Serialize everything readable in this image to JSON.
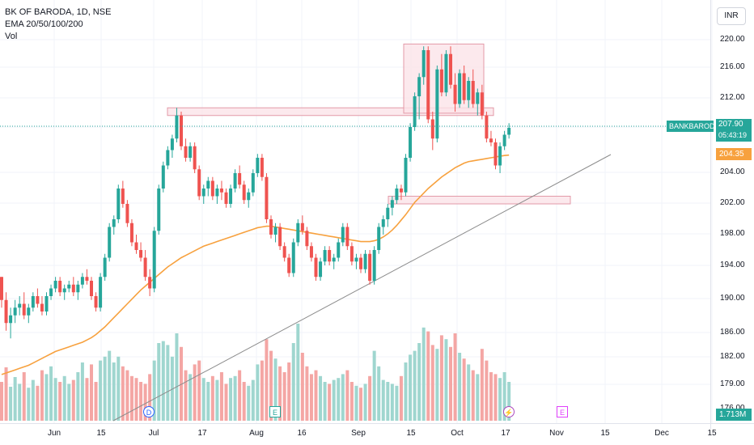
{
  "header": {
    "title": "BK OF BARODA, 1D, NSE",
    "indicator": "EMA 20/50/100/200",
    "volume_label": "Vol",
    "currency": "INR"
  },
  "price_axis": {
    "labels": [
      "220.00",
      "216.00",
      "212.00",
      "208.00",
      "204.00",
      "202.00",
      "198.00",
      "194.00",
      "190.00",
      "186.00",
      "182.00",
      "179.00",
      "176.00"
    ]
  },
  "time_axis": {
    "labels": [
      "Jun",
      "15",
      "Jul",
      "17",
      "Aug",
      "16",
      "Sep",
      "15",
      "Oct",
      "17",
      "Nov",
      "15",
      "Dec",
      "15"
    ]
  },
  "tags": {
    "symbol": "BANKBARODA",
    "last_price": "207.90",
    "countdown": "05:43:19",
    "ema_value": "204.35",
    "volume_value": "1.713M"
  },
  "markers": {
    "dividend": "D",
    "earnings_1": "E",
    "earnings_2": "E",
    "event": "⚡"
  },
  "colors": {
    "up": "#26a69a",
    "down": "#ef5350",
    "ema": "#f7a13e",
    "zone_fill": "#fbe4e8",
    "zone_stroke": "#e39aa8"
  },
  "chart_data": {
    "type": "candlestick",
    "series": [
      {
        "name": "BK OF BARODA, 1D, NSE",
        "ohlc": [
          [
            188.5,
            188.5,
            184.5,
            185.5
          ],
          [
            185.5,
            186.5,
            181.5,
            182.5
          ],
          [
            182.5,
            184.5,
            180.5,
            183.5
          ],
          [
            183.5,
            185.5,
            182.5,
            184.5
          ],
          [
            184.5,
            186.0,
            183.5,
            185.0
          ],
          [
            185.0,
            186.5,
            183.0,
            183.5
          ],
          [
            183.5,
            185.0,
            182.5,
            184.5
          ],
          [
            184.5,
            186.5,
            184.0,
            186.0
          ],
          [
            186.0,
            187.0,
            184.5,
            185.0
          ],
          [
            185.0,
            186.0,
            183.5,
            184.0
          ],
          [
            184.0,
            186.5,
            183.5,
            186.0
          ],
          [
            186.0,
            187.5,
            185.5,
            187.0
          ],
          [
            187.0,
            188.5,
            186.5,
            188.0
          ],
          [
            188.0,
            188.5,
            186.0,
            186.5
          ],
          [
            186.5,
            187.5,
            185.5,
            187.0
          ],
          [
            187.0,
            188.0,
            186.5,
            187.5
          ],
          [
            187.5,
            188.5,
            186.0,
            186.5
          ],
          [
            186.5,
            188.0,
            185.5,
            187.5
          ],
          [
            187.5,
            189.0,
            187.0,
            188.5
          ],
          [
            188.5,
            189.5,
            187.5,
            188.0
          ],
          [
            188.0,
            188.5,
            185.5,
            186.0
          ],
          [
            186.0,
            186.5,
            184.0,
            184.5
          ],
          [
            184.5,
            189.0,
            184.0,
            188.5
          ],
          [
            188.5,
            191.5,
            188.0,
            191.0
          ],
          [
            191.0,
            195.5,
            190.5,
            195.0
          ],
          [
            195.0,
            196.5,
            194.0,
            196.0
          ],
          [
            196.0,
            200.5,
            195.5,
            200.0
          ],
          [
            200.0,
            201.0,
            197.5,
            198.0
          ],
          [
            198.0,
            198.5,
            195.0,
            195.5
          ],
          [
            195.5,
            196.0,
            192.5,
            193.0
          ],
          [
            193.0,
            194.0,
            191.5,
            192.0
          ],
          [
            192.0,
            193.0,
            190.5,
            191.0
          ],
          [
            191.0,
            192.0,
            188.0,
            188.5
          ],
          [
            188.5,
            189.5,
            186.0,
            187.0
          ],
          [
            187.0,
            195.0,
            186.5,
            194.5
          ],
          [
            194.5,
            200.5,
            194.0,
            200.0
          ],
          [
            200.0,
            203.5,
            199.5,
            203.0
          ],
          [
            203.0,
            205.5,
            202.5,
            205.0
          ],
          [
            205.0,
            207.0,
            204.0,
            206.5
          ],
          [
            206.5,
            210.5,
            206.0,
            209.5
          ],
          [
            209.5,
            210.0,
            205.0,
            205.5
          ],
          [
            205.5,
            206.5,
            203.5,
            204.0
          ],
          [
            204.0,
            206.0,
            203.5,
            205.5
          ],
          [
            205.5,
            206.0,
            202.0,
            202.5
          ],
          [
            202.5,
            203.0,
            198.5,
            199.0
          ],
          [
            199.0,
            200.5,
            198.0,
            200.0
          ],
          [
            200.0,
            201.5,
            199.0,
            201.0
          ],
          [
            201.0,
            201.5,
            198.5,
            199.0
          ],
          [
            199.0,
            200.5,
            198.0,
            200.0
          ],
          [
            200.0,
            201.0,
            198.5,
            199.5
          ],
          [
            199.5,
            200.0,
            197.5,
            198.0
          ],
          [
            198.0,
            200.5,
            197.5,
            200.0
          ],
          [
            200.0,
            202.5,
            199.5,
            202.0
          ],
          [
            202.0,
            203.0,
            200.0,
            200.5
          ],
          [
            200.5,
            201.0,
            198.0,
            198.5
          ],
          [
            198.5,
            200.0,
            197.5,
            199.5
          ],
          [
            199.5,
            202.5,
            199.0,
            202.0
          ],
          [
            202.0,
            204.5,
            201.5,
            204.0
          ],
          [
            204.0,
            204.5,
            201.0,
            201.5
          ],
          [
            201.5,
            202.0,
            195.5,
            196.0
          ],
          [
            196.0,
            196.5,
            193.5,
            194.0
          ],
          [
            194.0,
            195.5,
            193.0,
            195.0
          ],
          [
            195.0,
            195.5,
            192.0,
            192.5
          ],
          [
            192.5,
            193.0,
            190.5,
            191.0
          ],
          [
            191.0,
            191.5,
            188.5,
            189.0
          ],
          [
            189.0,
            193.5,
            188.5,
            193.0
          ],
          [
            193.0,
            196.0,
            192.5,
            195.5
          ],
          [
            195.5,
            196.5,
            194.0,
            194.5
          ],
          [
            194.5,
            195.0,
            192.0,
            192.5
          ],
          [
            192.5,
            193.0,
            190.5,
            191.0
          ],
          [
            191.0,
            191.5,
            188.0,
            188.5
          ],
          [
            188.5,
            191.0,
            188.0,
            190.5
          ],
          [
            190.5,
            192.5,
            190.0,
            192.0
          ],
          [
            192.0,
            192.5,
            190.0,
            190.5
          ],
          [
            190.5,
            191.5,
            189.5,
            191.0
          ],
          [
            191.0,
            193.5,
            190.5,
            193.0
          ],
          [
            193.0,
            195.5,
            192.5,
            195.0
          ],
          [
            195.0,
            195.5,
            192.0,
            192.5
          ],
          [
            192.5,
            193.0,
            190.0,
            190.5
          ],
          [
            190.5,
            191.5,
            189.5,
            191.0
          ],
          [
            191.0,
            191.5,
            189.0,
            189.5
          ],
          [
            189.5,
            192.0,
            189.0,
            191.5
          ],
          [
            191.5,
            192.0,
            187.5,
            188.0
          ],
          [
            188.0,
            192.5,
            187.5,
            192.0
          ],
          [
            192.0,
            195.5,
            191.5,
            195.0
          ],
          [
            195.0,
            196.5,
            194.0,
            196.0
          ],
          [
            196.0,
            198.0,
            195.0,
            197.5
          ],
          [
            197.5,
            199.0,
            196.5,
            198.5
          ],
          [
            198.5,
            200.5,
            198.0,
            200.0
          ],
          [
            200.0,
            200.5,
            198.5,
            199.5
          ],
          [
            199.5,
            204.5,
            199.0,
            204.0
          ],
          [
            204.0,
            208.5,
            203.5,
            208.0
          ],
          [
            208.0,
            212.5,
            207.5,
            212.0
          ],
          [
            212.0,
            215.0,
            209.0,
            214.5
          ],
          [
            214.5,
            218.5,
            213.5,
            218.0
          ],
          [
            218.0,
            218.5,
            208.5,
            209.0
          ],
          [
            209.0,
            210.0,
            205.0,
            206.5
          ],
          [
            206.5,
            216.0,
            206.0,
            215.5
          ],
          [
            215.5,
            217.5,
            212.0,
            212.5
          ],
          [
            212.5,
            218.0,
            212.0,
            217.5
          ],
          [
            217.5,
            218.5,
            213.0,
            213.5
          ],
          [
            213.5,
            215.0,
            210.0,
            211.0
          ],
          [
            211.0,
            215.5,
            210.5,
            215.0
          ],
          [
            215.0,
            216.0,
            211.0,
            211.5
          ],
          [
            211.5,
            214.5,
            210.5,
            214.0
          ],
          [
            214.0,
            215.5,
            210.5,
            211.0
          ],
          [
            211.0,
            213.0,
            209.5,
            212.5
          ],
          [
            212.5,
            213.5,
            209.0,
            209.5
          ],
          [
            209.5,
            210.0,
            206.0,
            206.5
          ],
          [
            206.5,
            207.5,
            205.5,
            206.0
          ],
          [
            206.0,
            206.5,
            202.5,
            203.0
          ],
          [
            203.0,
            206.0,
            202.0,
            205.5
          ],
          [
            205.5,
            207.5,
            205.0,
            207.0
          ],
          [
            207.0,
            208.5,
            206.5,
            207.9
          ]
        ]
      },
      {
        "name": "EMA",
        "values": [
          175.8,
          176.0,
          176.2,
          176.4,
          176.6,
          176.8,
          177.0,
          177.3,
          177.6,
          177.9,
          178.2,
          178.5,
          178.8,
          179.0,
          179.2,
          179.4,
          179.6,
          179.8,
          180.0,
          180.3,
          180.6,
          181.0,
          181.5,
          182.0,
          182.6,
          183.2,
          183.8,
          184.4,
          185.0,
          185.6,
          186.2,
          186.8,
          187.3,
          187.8,
          188.3,
          188.8,
          189.3,
          189.8,
          190.2,
          190.6,
          191.0,
          191.3,
          191.6,
          191.9,
          192.2,
          192.5,
          192.7,
          192.9,
          193.1,
          193.3,
          193.5,
          193.7,
          193.9,
          194.1,
          194.3,
          194.5,
          194.7,
          194.9,
          195.0,
          195.1,
          195.1,
          195.0,
          194.9,
          194.8,
          194.7,
          194.6,
          194.5,
          194.4,
          194.3,
          194.2,
          194.1,
          194.0,
          193.9,
          193.8,
          193.7,
          193.6,
          193.5,
          193.4,
          193.3,
          193.2,
          193.1,
          193.1,
          193.1,
          193.2,
          193.4,
          193.7,
          194.1,
          194.6,
          195.2,
          195.9,
          196.6,
          197.4,
          198.2,
          198.8,
          199.4,
          200.0,
          200.5,
          201.0,
          201.5,
          201.9,
          202.3,
          202.7,
          203.0,
          203.3,
          203.5,
          203.6,
          203.7,
          203.8,
          203.9,
          204.0,
          204.1,
          204.2,
          204.3,
          204.35
        ]
      },
      {
        "name": "Vol",
        "values": [
          0.4,
          0.55,
          0.35,
          0.45,
          0.38,
          0.5,
          0.34,
          0.42,
          0.36,
          0.52,
          0.48,
          0.56,
          0.44,
          0.4,
          0.46,
          0.38,
          0.42,
          0.5,
          0.6,
          0.44,
          0.58,
          0.4,
          0.62,
          0.66,
          0.72,
          0.6,
          0.66,
          0.56,
          0.52,
          0.46,
          0.44,
          0.4,
          0.38,
          0.48,
          0.62,
          0.8,
          0.82,
          0.78,
          0.66,
          0.9,
          0.76,
          0.52,
          0.48,
          0.58,
          0.62,
          0.44,
          0.4,
          0.46,
          0.42,
          0.5,
          0.38,
          0.44,
          0.46,
          0.52,
          0.4,
          0.36,
          0.42,
          0.58,
          0.62,
          0.84,
          0.72,
          0.64,
          0.56,
          0.5,
          0.6,
          0.8,
          1.0,
          0.7,
          0.56,
          0.48,
          0.52,
          0.46,
          0.4,
          0.38,
          0.42,
          0.44,
          0.48,
          0.52,
          0.4,
          0.36,
          0.34,
          0.38,
          0.46,
          0.72,
          0.56,
          0.42,
          0.4,
          0.38,
          0.36,
          0.46,
          0.6,
          0.68,
          0.72,
          0.8,
          0.96,
          0.92,
          0.78,
          0.74,
          0.88,
          0.84,
          0.76,
          0.9,
          0.7,
          0.64,
          0.58,
          0.52,
          0.48,
          0.74,
          0.62,
          0.5,
          0.48,
          0.44,
          0.5,
          0.4
        ]
      }
    ],
    "x_labels": [
      "Jun",
      "15",
      "Jul",
      "17",
      "Aug",
      "16",
      "Sep",
      "15",
      "Oct",
      "17",
      "Nov",
      "15",
      "Dec",
      "15"
    ],
    "y_labels": [
      "220.00",
      "216.00",
      "212.00",
      "208.00",
      "204.00",
      "202.00",
      "198.00",
      "194.00",
      "190.00",
      "186.00",
      "182.00",
      "179.00",
      "176.00"
    ],
    "zones": [
      {
        "label": "",
        "low": 209.5,
        "high": 210.5
      },
      {
        "label": "",
        "low": 209.8,
        "high": 218.8
      },
      {
        "label": "",
        "low": 198.0,
        "high": 199.0
      }
    ]
  }
}
